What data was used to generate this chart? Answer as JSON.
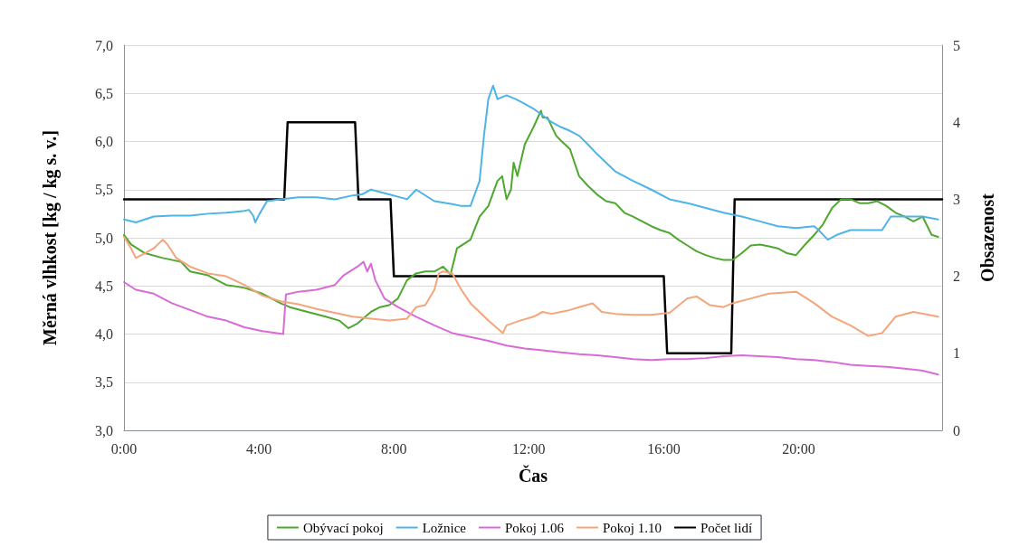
{
  "chart_data": {
    "type": "line",
    "xlabel": "Čas",
    "ylabel": "Měrná vlhkost [kg / kg s. v.]",
    "y2label": "Obsazenost",
    "xlim": [
      0,
      24.25
    ],
    "xticks": [
      {
        "value": 0,
        "label": "0:00"
      },
      {
        "value": 4,
        "label": "4:00"
      },
      {
        "value": 8,
        "label": "8:00"
      },
      {
        "value": 12,
        "label": "12:00"
      },
      {
        "value": 16,
        "label": "16:00"
      },
      {
        "value": 20,
        "label": "20:00"
      }
    ],
    "ylim": [
      3,
      7
    ],
    "yticks": [
      {
        "value": 3,
        "label": "3,0"
      },
      {
        "value": 3.5,
        "label": "3,5"
      },
      {
        "value": 4,
        "label": "4,0"
      },
      {
        "value": 4.5,
        "label": "4,5"
      },
      {
        "value": 5,
        "label": "5,0"
      },
      {
        "value": 5.5,
        "label": "5,5"
      },
      {
        "value": 6,
        "label": "6,0"
      },
      {
        "value": 6.5,
        "label": "6,5"
      },
      {
        "value": 7,
        "label": "7,0"
      }
    ],
    "y2lim": [
      0,
      5
    ],
    "y2ticks": [
      0,
      1,
      2,
      3,
      4,
      5
    ],
    "grid": "y",
    "legend": "bottom",
    "marker": "none",
    "line_style": "solid",
    "series": [
      {
        "name": "Obývací pokoj",
        "color": "#4ea72e",
        "x": [
          0,
          0.21,
          0.62,
          1.15,
          1.69,
          1.96,
          2.49,
          3.03,
          3.57,
          4.1,
          4.64,
          4.91,
          5.44,
          5.98,
          6.38,
          6.65,
          6.92,
          7.32,
          7.59,
          7.86,
          8.12,
          8.39,
          8.66,
          8.93,
          9.2,
          9.46,
          9.68,
          9.87,
          10.27,
          10.54,
          10.8,
          11.07,
          11.21,
          11.34,
          11.47,
          11.55,
          11.66,
          11.88,
          12.14,
          12.36,
          12.41,
          12.55,
          12.81,
          12.95,
          13.22,
          13.49,
          13.75,
          14.02,
          14.29,
          14.56,
          14.83,
          15.09,
          15.36,
          15.63,
          15.9,
          16.17,
          16.43,
          16.7,
          16.97,
          17.24,
          17.51,
          17.77,
          18.04,
          18.31,
          18.58,
          18.85,
          19.12,
          19.38,
          19.65,
          19.92,
          20.19,
          20.46,
          20.72,
          20.99,
          21.26,
          21.53,
          21.8,
          22.06,
          22.33,
          22.6,
          22.87,
          23.14,
          23.4,
          23.67,
          23.94,
          24.13
        ],
        "values": [
          5.03,
          4.93,
          4.84,
          4.79,
          4.75,
          4.65,
          4.61,
          4.51,
          4.48,
          4.42,
          4.32,
          4.28,
          4.23,
          4.18,
          4.14,
          4.06,
          4.11,
          4.23,
          4.28,
          4.3,
          4.37,
          4.56,
          4.63,
          4.65,
          4.65,
          4.7,
          4.62,
          4.89,
          4.98,
          5.22,
          5.33,
          5.59,
          5.64,
          5.4,
          5.5,
          5.78,
          5.64,
          5.97,
          6.15,
          6.32,
          6.25,
          6.25,
          6.06,
          6.01,
          5.92,
          5.64,
          5.54,
          5.45,
          5.38,
          5.36,
          5.26,
          5.22,
          5.17,
          5.12,
          5.08,
          5.05,
          4.98,
          4.92,
          4.86,
          4.82,
          4.79,
          4.77,
          4.77,
          4.84,
          4.92,
          4.93,
          4.91,
          4.89,
          4.84,
          4.82,
          4.93,
          5.03,
          5.14,
          5.31,
          5.4,
          5.4,
          5.36,
          5.36,
          5.38,
          5.33,
          5.26,
          5.22,
          5.17,
          5.22,
          5.03,
          5.01
        ]
      },
      {
        "name": "Ložnice",
        "color": "#4eb3e6",
        "x": [
          0,
          0.35,
          0.88,
          1.42,
          1.96,
          2.49,
          3.03,
          3.57,
          3.7,
          3.83,
          3.89,
          4.02,
          4.24,
          4.64,
          5.17,
          5.71,
          6.25,
          6.78,
          7.05,
          7.32,
          7.86,
          8.39,
          8.66,
          9.2,
          9.73,
          10,
          10.27,
          10.54,
          10.67,
          10.8,
          10.94,
          11.07,
          11.34,
          11.61,
          11.88,
          12.14,
          12.41,
          12.68,
          12.95,
          13.22,
          13.49,
          13.75,
          14.02,
          14.29,
          14.56,
          15.09,
          15.63,
          16.17,
          16.7,
          17.24,
          17.77,
          18.31,
          18.85,
          19.38,
          19.92,
          20.46,
          20.59,
          20.86,
          21.13,
          21.53,
          22.06,
          22.47,
          22.73,
          23.14,
          23.67,
          24.13
        ],
        "values": [
          5.19,
          5.16,
          5.22,
          5.23,
          5.23,
          5.25,
          5.26,
          5.28,
          5.29,
          5.23,
          5.16,
          5.25,
          5.38,
          5.4,
          5.42,
          5.42,
          5.4,
          5.44,
          5.45,
          5.5,
          5.45,
          5.4,
          5.5,
          5.38,
          5.35,
          5.33,
          5.33,
          5.59,
          6.06,
          6.44,
          6.58,
          6.44,
          6.48,
          6.44,
          6.39,
          6.34,
          6.27,
          6.2,
          6.15,
          6.11,
          6.06,
          5.97,
          5.87,
          5.78,
          5.69,
          5.59,
          5.5,
          5.4,
          5.36,
          5.31,
          5.26,
          5.22,
          5.17,
          5.12,
          5.1,
          5.12,
          5.08,
          4.98,
          5.03,
          5.08,
          5.08,
          5.08,
          5.22,
          5.22,
          5.22,
          5.19
        ]
      },
      {
        "name": "Pokoj 1.06",
        "color": "#d96bd6",
        "x": [
          0,
          0.35,
          0.88,
          1.42,
          1.96,
          2.49,
          3.03,
          3.57,
          4.1,
          4.72,
          4.8,
          5.17,
          5.71,
          6.25,
          6.51,
          6.92,
          7.1,
          7.21,
          7.32,
          7.45,
          7.72,
          8.12,
          8.66,
          9.2,
          9.73,
          10.27,
          10.8,
          11.34,
          11.88,
          12.41,
          12.95,
          13.49,
          14.02,
          14.56,
          15.09,
          15.63,
          16.17,
          16.7,
          17.24,
          17.77,
          18.31,
          18.85,
          19.38,
          19.92,
          20.46,
          20.99,
          21.53,
          22.06,
          22.6,
          23.14,
          23.67,
          24.13
        ],
        "values": [
          4.54,
          4.46,
          4.42,
          4.32,
          4.25,
          4.18,
          4.14,
          4.07,
          4.03,
          4,
          4.41,
          4.44,
          4.46,
          4.51,
          4.61,
          4.7,
          4.75,
          4.65,
          4.73,
          4.56,
          4.37,
          4.28,
          4.18,
          4.09,
          4.01,
          3.97,
          3.93,
          3.88,
          3.85,
          3.83,
          3.81,
          3.79,
          3.78,
          3.76,
          3.74,
          3.73,
          3.74,
          3.74,
          3.75,
          3.77,
          3.78,
          3.77,
          3.76,
          3.74,
          3.73,
          3.71,
          3.68,
          3.67,
          3.66,
          3.64,
          3.62,
          3.58
        ]
      },
      {
        "name": "Pokoj 1.10",
        "color": "#f4a57c",
        "x": [
          0,
          0.21,
          0.35,
          0.62,
          0.88,
          1.15,
          1.29,
          1.55,
          1.96,
          2.49,
          3.03,
          3.57,
          4.1,
          4.64,
          5.17,
          5.71,
          6.25,
          6.78,
          7.32,
          7.86,
          8.39,
          8.66,
          8.93,
          9.2,
          9.33,
          9.46,
          9.73,
          10,
          10.27,
          10.8,
          11.23,
          11.34,
          11.74,
          12.14,
          12.41,
          12.68,
          12.95,
          13.22,
          13.49,
          13.89,
          14.16,
          14.56,
          15.09,
          15.63,
          16.17,
          16.7,
          16.97,
          17.37,
          17.77,
          18.04,
          18.58,
          19.12,
          19.92,
          20.46,
          20.99,
          21.53,
          22.06,
          22.47,
          22.87,
          23.4,
          24.13
        ],
        "values": [
          5.01,
          4.89,
          4.79,
          4.84,
          4.89,
          4.98,
          4.93,
          4.79,
          4.7,
          4.63,
          4.6,
          4.51,
          4.4,
          4.34,
          4.31,
          4.26,
          4.22,
          4.18,
          4.16,
          4.14,
          4.16,
          4.28,
          4.3,
          4.46,
          4.63,
          4.65,
          4.63,
          4.46,
          4.32,
          4.14,
          4.01,
          4.09,
          4.14,
          4.18,
          4.23,
          4.21,
          4.23,
          4.25,
          4.28,
          4.32,
          4.23,
          4.21,
          4.2,
          4.2,
          4.22,
          4.37,
          4.39,
          4.3,
          4.28,
          4.32,
          4.37,
          4.42,
          4.44,
          4.32,
          4.18,
          4.09,
          3.98,
          4.01,
          4.18,
          4.23,
          4.18
        ]
      },
      {
        "name": "Počet lidí",
        "color": "#000000",
        "axis": "y2",
        "x": [
          0,
          4.75,
          4.85,
          6.85,
          6.95,
          7.9,
          8,
          16,
          16.1,
          18,
          18.1,
          24.25
        ],
        "values": [
          3,
          3,
          4,
          4,
          3,
          3,
          2,
          2,
          1,
          1,
          3,
          3
        ]
      }
    ]
  }
}
